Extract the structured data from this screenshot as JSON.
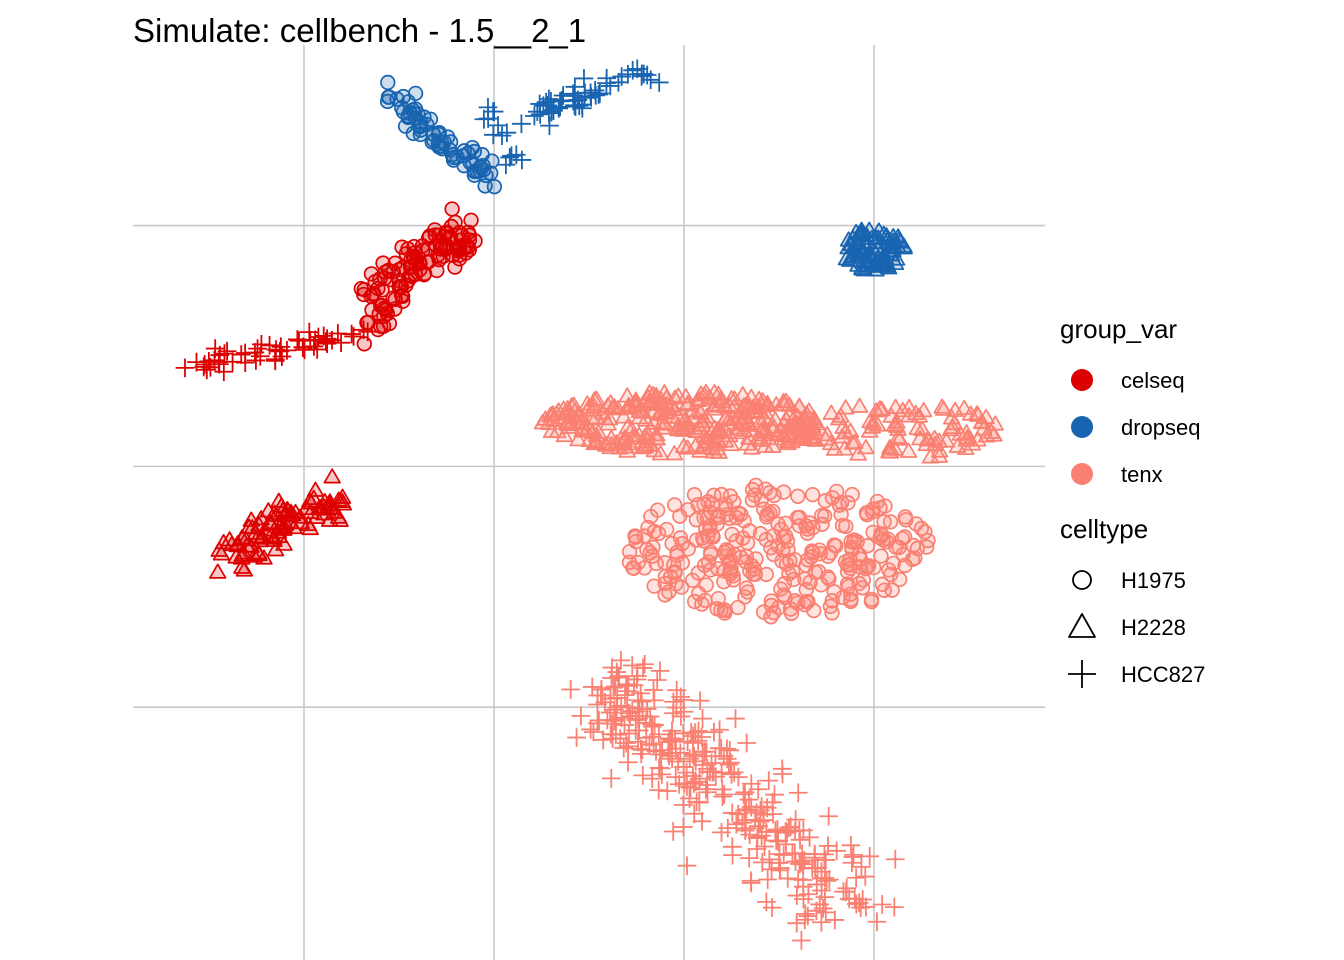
{
  "chart_data": {
    "type": "scatter",
    "title": "Simulate: cellbench - 1.5__2_1",
    "xlabel": "",
    "ylabel": "",
    "xlim": [
      -2.0,
      2.8
    ],
    "ylim": [
      -2.05,
      1.75
    ],
    "grid": true,
    "x_gridlines": [
      -1.1,
      -0.1,
      0.9,
      1.9
    ],
    "y_gridlines": [
      1.0,
      0.0,
      -1.0
    ],
    "axis_ticks_shown": false,
    "legend_position": "right",
    "colors": {
      "celseq": "#dd0000",
      "dropseq": "#1864b0",
      "tenx": "#fa8072"
    },
    "legend": {
      "color": {
        "title": "group_var",
        "entries": [
          "celseq",
          "dropseq",
          "tenx"
        ]
      },
      "shape": {
        "title": "celltype",
        "entries": [
          "H1975",
          "H2228",
          "HCC827"
        ]
      }
    },
    "clusters": [
      {
        "group": "dropseq",
        "celltype": "H1975",
        "n": 70,
        "shape": "line",
        "path": [
          [
            -0.63,
            1.6
          ],
          [
            -0.55,
            1.45
          ],
          [
            -0.4,
            1.37
          ],
          [
            -0.25,
            1.28
          ],
          [
            -0.1,
            1.2
          ]
        ],
        "spread": 0.035
      },
      {
        "group": "dropseq",
        "celltype": "HCC827",
        "n": 14,
        "shape": "line",
        "path": [
          [
            -0.12,
            1.5
          ],
          [
            -0.05,
            1.38
          ],
          [
            -0.02,
            1.28
          ]
        ],
        "spread": 0.03
      },
      {
        "group": "dropseq",
        "celltype": "HCC827",
        "n": 55,
        "shape": "line",
        "path": [
          [
            0.1,
            1.45
          ],
          [
            0.4,
            1.55
          ],
          [
            0.75,
            1.65
          ]
        ],
        "spread": 0.03
      },
      {
        "group": "dropseq",
        "celltype": "H2228",
        "n": 85,
        "shape": "blob",
        "center": [
          1.9,
          0.9
        ],
        "radius": [
          0.16,
          0.09
        ]
      },
      {
        "group": "celseq",
        "celltype": "H1975",
        "n": 120,
        "shape": "line",
        "path": [
          [
            -0.75,
            0.6
          ],
          [
            -0.62,
            0.75
          ],
          [
            -0.5,
            0.88
          ],
          [
            -0.35,
            0.95
          ],
          [
            -0.25,
            0.9
          ]
        ],
        "spread": 0.06
      },
      {
        "group": "celseq",
        "celltype": "HCC827",
        "n": 55,
        "shape": "line",
        "path": [
          [
            -1.7,
            0.42
          ],
          [
            -1.4,
            0.46
          ],
          [
            -1.1,
            0.5
          ],
          [
            -0.8,
            0.57
          ]
        ],
        "spread": 0.025
      },
      {
        "group": "celseq",
        "celltype": "H2228",
        "n": 95,
        "shape": "line",
        "path": [
          [
            -1.55,
            -0.42
          ],
          [
            -1.35,
            -0.3
          ],
          [
            -1.15,
            -0.2
          ],
          [
            -0.9,
            -0.13
          ]
        ],
        "spread": 0.05
      },
      {
        "group": "tenx",
        "celltype": "H2228",
        "n": 320,
        "shape": "blob",
        "center": [
          0.9,
          0.18
        ],
        "radius": [
          0.75,
          0.13
        ]
      },
      {
        "group": "tenx",
        "celltype": "H2228",
        "n": 90,
        "shape": "blob",
        "center": [
          2.05,
          0.15
        ],
        "radius": [
          0.5,
          0.12
        ]
      },
      {
        "group": "tenx",
        "celltype": "H1975",
        "n": 300,
        "shape": "blob",
        "center": [
          1.4,
          -0.35
        ],
        "radius": [
          0.8,
          0.28
        ]
      },
      {
        "group": "tenx",
        "celltype": "HCC827",
        "n": 330,
        "shape": "line",
        "path": [
          [
            0.5,
            -0.95
          ],
          [
            0.65,
            -1.05
          ],
          [
            0.95,
            -1.2
          ],
          [
            1.2,
            -1.4
          ],
          [
            1.45,
            -1.65
          ],
          [
            1.8,
            -1.8
          ]
        ],
        "spread": 0.12
      }
    ]
  }
}
